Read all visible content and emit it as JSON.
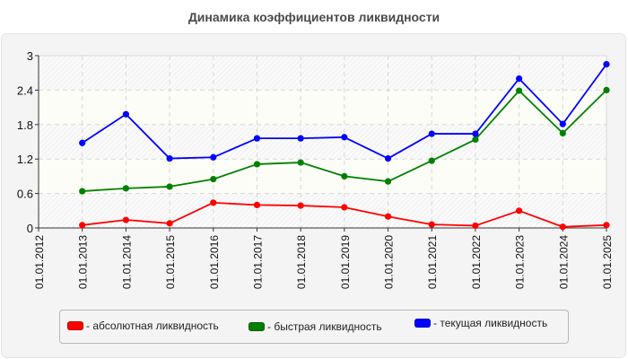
{
  "title": "Динамика коэффициентов ликвидности",
  "chart_data": {
    "type": "line",
    "title": "Динамика коэффициентов ликвидности",
    "xlabel": "",
    "ylabel": "",
    "categories": [
      "01.01.2012",
      "01.01.2013",
      "01.01.2014",
      "01.01.2015",
      "01.01.2016",
      "01.01.2017",
      "01.01.2018",
      "01.01.2019",
      "01.01.2020",
      "01.01.2021",
      "01.01.2022",
      "01.01.2023",
      "01.01.2024",
      "01.01.2025"
    ],
    "ylim": [
      0,
      3
    ],
    "yticks": [
      "0",
      "0.6",
      "1.2",
      "1.8",
      "2.4",
      "3"
    ],
    "grid": true,
    "legend_position": "bottom",
    "series": [
      {
        "name": "абсолютная ликвидность",
        "color": "#ff0000",
        "values": [
          null,
          0.05,
          0.14,
          0.08,
          0.44,
          0.4,
          0.39,
          0.36,
          0.2,
          0.06,
          0.04,
          0.3,
          0.02,
          0.05
        ]
      },
      {
        "name": "быстрая ликвидность",
        "color": "#008000",
        "values": [
          null,
          0.64,
          0.69,
          0.72,
          0.85,
          1.11,
          1.14,
          0.9,
          0.81,
          1.17,
          1.54,
          2.39,
          1.65,
          2.4
        ]
      },
      {
        "name": "текущая ликвидность",
        "color": "#0000ff",
        "values": [
          null,
          1.48,
          1.98,
          1.21,
          1.23,
          1.56,
          1.56,
          1.58,
          1.21,
          1.64,
          1.64,
          2.6,
          1.81,
          2.85
        ]
      }
    ]
  },
  "legend": {
    "items": [
      {
        "label": "- абсолютная ликвидность",
        "color": "#ff0000"
      },
      {
        "label": "- быстрая ликвидность",
        "color": "#008000"
      },
      {
        "label": "- текущая ликвидность",
        "color": "#0000ff"
      }
    ]
  }
}
